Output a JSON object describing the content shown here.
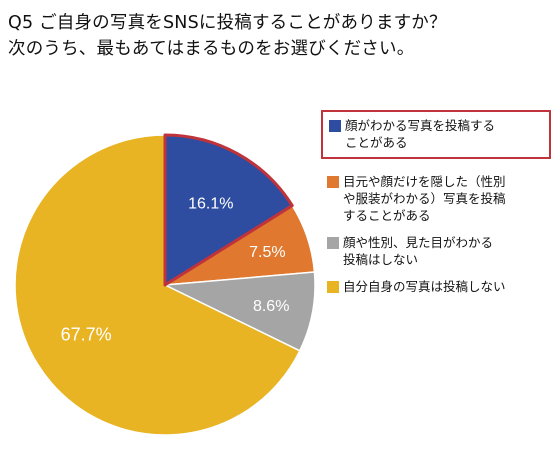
{
  "title": {
    "line1": "Q5 ご自身の写真をSNSに投稿することがありますか？",
    "line2": "次のうち、最もあてはまるものをお選びください。"
  },
  "chart_data": {
    "type": "pie",
    "title": "Q5 ご自身の写真をSNSに投稿することがありますか？ 次のうち、最もあてはまるものをお選びください。",
    "start_angle_deg": 0,
    "direction": "clockwise",
    "legend_position": "right",
    "highlighted_slice": 0,
    "slices": [
      {
        "label": "顔がわかる写真を投稿することがある",
        "value": 16.1,
        "value_label": "16.1%",
        "color": "#2e4da0"
      },
      {
        "label": "目元や顔だけを隠した（性別や服装がわかる）写真を投稿することがある",
        "value": 7.5,
        "value_label": "7.5%",
        "color": "#e0782f"
      },
      {
        "label": "顔や性別、見た目がわかる投稿はしない",
        "value": 8.6,
        "value_label": "8.6%",
        "color": "#a5a5a5"
      },
      {
        "label": "自分自身の写真は投稿しない",
        "value": 67.7,
        "value_label": "67.7%",
        "color": "#e8b424"
      }
    ],
    "highlight_color": "#c0333a"
  },
  "legend": {
    "items": [
      {
        "line1": "顔がわかる写真を投稿する",
        "line2": "ことがある"
      },
      {
        "line1": "目元や顔だけを隠した（性別",
        "line2": "や服装がわかる）写真を投稿",
        "line3": "することがある"
      },
      {
        "line1": "顔や性別、見た目がわかる",
        "line2": "投稿はしない"
      },
      {
        "line1": "自分自身の写真は投稿しない"
      }
    ]
  }
}
